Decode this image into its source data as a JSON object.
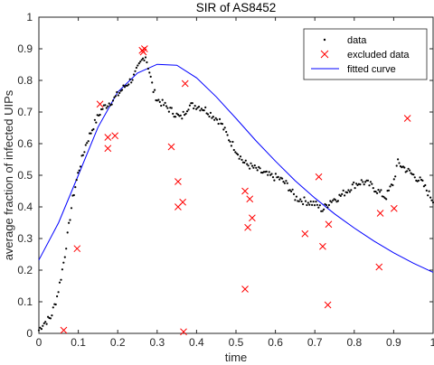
{
  "chart_data": {
    "type": "scatter",
    "title": "SIR of AS8452",
    "xlabel": "time",
    "ylabel": "average fraction of infected UIPs",
    "xlim": [
      0,
      1
    ],
    "ylim": [
      0,
      1
    ],
    "xticks": [
      "0",
      "0.1",
      "0.2",
      "0.3",
      "0.4",
      "0.5",
      "0.6",
      "0.7",
      "0.8",
      "0.9",
      "1"
    ],
    "yticks": [
      "0",
      "0.1",
      "0.2",
      "0.3",
      "0.4",
      "0.5",
      "0.6",
      "0.7",
      "0.8",
      "0.9",
      "1"
    ],
    "grid": false,
    "legend_position": "top-right",
    "colors": {
      "data": "#000000",
      "excluded": "#ff0000",
      "fitted": "#0000ff",
      "axis": "#262626"
    },
    "series": [
      {
        "name": "data",
        "style": "dots",
        "x_start": 0.0,
        "x_step": 0.0033,
        "y_knots": [
          [
            0.0,
            0.01
          ],
          [
            0.01,
            0.03
          ],
          [
            0.03,
            0.05
          ],
          [
            0.045,
            0.11
          ],
          [
            0.055,
            0.17
          ],
          [
            0.065,
            0.24
          ],
          [
            0.075,
            0.33
          ],
          [
            0.085,
            0.42
          ],
          [
            0.1,
            0.51
          ],
          [
            0.12,
            0.6
          ],
          [
            0.14,
            0.66
          ],
          [
            0.16,
            0.71
          ],
          [
            0.19,
            0.74
          ],
          [
            0.21,
            0.77
          ],
          [
            0.24,
            0.81
          ],
          [
            0.26,
            0.86
          ],
          [
            0.27,
            0.88
          ],
          [
            0.28,
            0.83
          ],
          [
            0.29,
            0.77
          ],
          [
            0.3,
            0.74
          ],
          [
            0.32,
            0.72
          ],
          [
            0.34,
            0.7
          ],
          [
            0.36,
            0.68
          ],
          [
            0.38,
            0.72
          ],
          [
            0.4,
            0.72
          ],
          [
            0.42,
            0.71
          ],
          [
            0.44,
            0.69
          ],
          [
            0.46,
            0.67
          ],
          [
            0.48,
            0.62
          ],
          [
            0.5,
            0.58
          ],
          [
            0.52,
            0.54
          ],
          [
            0.55,
            0.52
          ],
          [
            0.58,
            0.5
          ],
          [
            0.61,
            0.49
          ],
          [
            0.63,
            0.47
          ],
          [
            0.65,
            0.43
          ],
          [
            0.67,
            0.42
          ],
          [
            0.7,
            0.41
          ],
          [
            0.72,
            0.39
          ],
          [
            0.74,
            0.42
          ],
          [
            0.76,
            0.43
          ],
          [
            0.78,
            0.45
          ],
          [
            0.8,
            0.47
          ],
          [
            0.82,
            0.48
          ],
          [
            0.84,
            0.47
          ],
          [
            0.86,
            0.45
          ],
          [
            0.88,
            0.43
          ],
          [
            0.9,
            0.48
          ],
          [
            0.91,
            0.54
          ],
          [
            0.93,
            0.52
          ],
          [
            0.95,
            0.5
          ],
          [
            0.97,
            0.48
          ],
          [
            1.0,
            0.42
          ]
        ],
        "jitter": 0.012
      },
      {
        "name": "excluded data",
        "style": "x-markers",
        "points": [
          [
            0.063,
            0.01
          ],
          [
            0.097,
            0.268
          ],
          [
            0.155,
            0.725
          ],
          [
            0.175,
            0.585
          ],
          [
            0.175,
            0.62
          ],
          [
            0.193,
            0.625
          ],
          [
            0.262,
            0.895
          ],
          [
            0.265,
            0.89
          ],
          [
            0.268,
            0.9
          ],
          [
            0.336,
            0.59
          ],
          [
            0.353,
            0.48
          ],
          [
            0.353,
            0.4
          ],
          [
            0.365,
            0.415
          ],
          [
            0.367,
            0.005
          ],
          [
            0.371,
            0.79
          ],
          [
            0.523,
            0.45
          ],
          [
            0.523,
            0.14
          ],
          [
            0.53,
            0.335
          ],
          [
            0.535,
            0.425
          ],
          [
            0.541,
            0.365
          ],
          [
            0.675,
            0.315
          ],
          [
            0.71,
            0.495
          ],
          [
            0.72,
            0.275
          ],
          [
            0.733,
            0.09
          ],
          [
            0.735,
            0.345
          ],
          [
            0.863,
            0.21
          ],
          [
            0.866,
            0.38
          ],
          [
            0.901,
            0.395
          ],
          [
            0.935,
            0.68
          ]
        ]
      },
      {
        "name": "fitted curve",
        "style": "line",
        "x": [
          0,
          0.05,
          0.1,
          0.15,
          0.2,
          0.25,
          0.3,
          0.35,
          0.4,
          0.45,
          0.5,
          0.55,
          0.6,
          0.65,
          0.7,
          0.75,
          0.8,
          0.85,
          0.9,
          0.95,
          1.0
        ],
        "y": [
          0.232,
          0.35,
          0.5,
          0.652,
          0.763,
          0.823,
          0.851,
          0.848,
          0.808,
          0.748,
          0.68,
          0.61,
          0.545,
          0.483,
          0.428,
          0.378,
          0.333,
          0.292,
          0.255,
          0.222,
          0.193
        ]
      }
    ]
  }
}
